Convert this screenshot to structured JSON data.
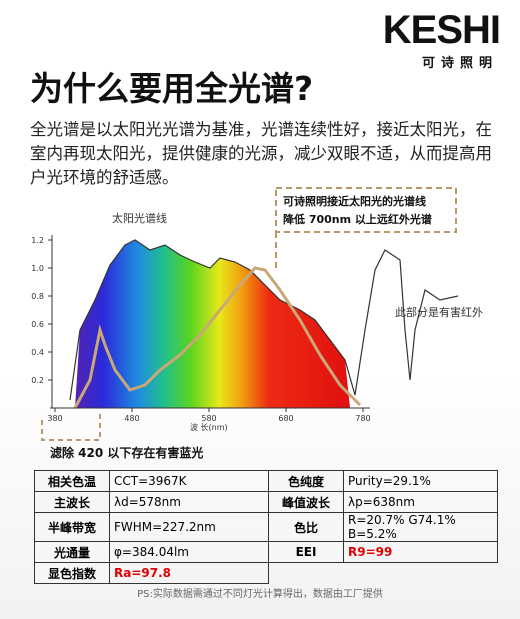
{
  "header": {
    "brand": "KESHI",
    "brand_sub": "可诗照明",
    "title": "为什么要用全光谱?",
    "intro": "全光谱是以太阳光光谱为基准，光谱连续性好，接近太阳光，在室内再现太阳光，提供健康的光源，减少双眼不适，从而提高用户光环境的舒适感。"
  },
  "spectrum": {
    "sun_label": "太阳光谱线",
    "callout": [
      "可诗照明接近太阳光的光谱线",
      "降低 700nm 以上远红外光谱"
    ],
    "infrared_label": "此部分是有害红外",
    "blue_label": "滤除 420 以下存在有害蓝光",
    "xlabel": "波 长(nm)",
    "yticks": [
      {
        "value": 0.2,
        "label": "0.2"
      },
      {
        "value": 0.4,
        "label": "0.4"
      },
      {
        "value": 0.6,
        "label": "0.6"
      },
      {
        "value": 0.8,
        "label": "0.8"
      },
      {
        "value": 1,
        "label": "1.0"
      },
      {
        "value": 1.2,
        "label": "1.2"
      }
    ],
    "xticks": [
      380,
      480,
      580,
      680,
      780
    ]
  },
  "table": {
    "rows": [
      [
        "相关色温",
        "CCT=3967K",
        "色纯度",
        "Purity=29.1%"
      ],
      [
        "主波长",
        "λd=578nm",
        "峰值波长",
        "λp=638nm"
      ],
      [
        "半峰带宽",
        "FWHM=227.2nm",
        "色比",
        "R=20.7% G74.1% B=5.2%"
      ],
      [
        "光通量",
        "φ=384.04lm",
        "EEI",
        "R9=99"
      ],
      [
        "显色指数",
        "Ra=97.8"
      ]
    ]
  },
  "footnote": "PS:实际数据需通过不同灯光计算得出，数据由工厂提供"
}
